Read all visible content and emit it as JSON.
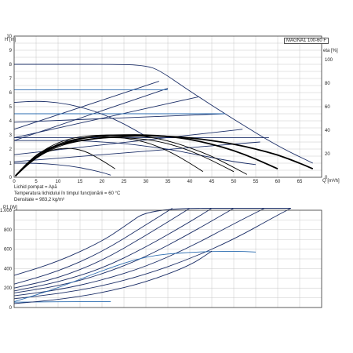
{
  "model_label": "MAGNA1 100-60 F",
  "fluid": {
    "line1": "Lichid pompat = Apă",
    "line2": "Temperatura lichidului în timpul funcţionării = 60 °C",
    "line3": "Densitate = 983,2 kg/m³"
  },
  "chart_data": [
    {
      "type": "line",
      "title": "",
      "ylabel": "H [m]",
      "y2label": "eta [%]",
      "xlabel": "Q [m³/h]",
      "xlim": [
        0,
        70
      ],
      "ylim": [
        0,
        10
      ],
      "y2lim": [
        0,
        120
      ],
      "x_ticks": [
        0,
        5,
        10,
        15,
        20,
        25,
        30,
        35,
        40,
        45,
        50,
        55,
        60,
        65
      ],
      "y_ticks": [
        0,
        1,
        2,
        3,
        4,
        5,
        6,
        7,
        8,
        9,
        10
      ],
      "y2_ticks": [
        0,
        20,
        40,
        60,
        80,
        100
      ],
      "grid": true,
      "series": [
        {
          "style": "curve",
          "x": [
            0,
            25,
            30,
            33,
            40,
            50,
            60,
            68
          ],
          "y": [
            8,
            8,
            7.9,
            7.6,
            6.1,
            4.1,
            2.2,
            1.0
          ]
        },
        {
          "style": "curve",
          "x": [
            0,
            33
          ],
          "y": [
            3.4,
            6.8
          ]
        },
        {
          "style": "curve",
          "x": [
            0,
            35
          ],
          "y": [
            2.6,
            6.3
          ]
        },
        {
          "style": "curve",
          "x": [
            0,
            42
          ],
          "y": [
            2.8,
            5.7
          ]
        },
        {
          "style": "curve",
          "x": [
            0,
            48
          ],
          "y": [
            3.9,
            4.5
          ]
        },
        {
          "style": "curve",
          "x": [
            0,
            52
          ],
          "y": [
            1.6,
            3.4
          ]
        },
        {
          "style": "curve",
          "x": [
            0,
            58
          ],
          "y": [
            2.8,
            2.8
          ]
        },
        {
          "style": "curve",
          "x": [
            0,
            56
          ],
          "y": [
            1.1,
            2.5
          ]
        },
        {
          "style": "curve-blue",
          "x": [
            0,
            48
          ],
          "y": [
            4.5,
            4.5
          ]
        },
        {
          "style": "curve-blue",
          "x": [
            0,
            35
          ],
          "y": [
            6.2,
            6.2
          ]
        },
        {
          "style": "curve",
          "x": [
            0,
            5,
            10,
            15,
            20,
            25,
            30
          ],
          "y": [
            5.3,
            5.4,
            5.3,
            5.0,
            4.5,
            3.8,
            2.9
          ]
        },
        {
          "style": "curve",
          "x": [
            0,
            5,
            10,
            15,
            20,
            22
          ],
          "y": [
            1.0,
            1.0,
            0.9,
            0.7,
            0.35,
            0.15
          ]
        },
        {
          "style": "curve",
          "x": [
            0,
            5,
            10,
            15,
            20,
            25,
            30,
            35,
            40,
            45,
            50,
            55
          ],
          "y": [
            2.6,
            2.6,
            2.6,
            2.6,
            2.5,
            2.4,
            2.2,
            2.0,
            1.7,
            1.4,
            1.1,
            0.9
          ]
        },
        {
          "style": "curve-bold",
          "x": [
            0.3,
            3,
            6,
            10,
            15,
            20,
            25,
            30,
            35,
            40,
            45,
            50,
            55,
            60,
            65,
            68
          ],
          "y": [
            0.1,
            1.0,
            1.8,
            2.3,
            2.6,
            2.8,
            2.9,
            2.95,
            2.9,
            2.8,
            2.6,
            2.35,
            2.0,
            1.6,
            1.0,
            0.6
          ]
        },
        {
          "style": "curve-bold",
          "x": [
            0.3,
            4,
            8,
            12,
            16,
            20,
            25,
            30,
            35,
            40,
            45,
            50,
            55,
            60
          ],
          "y": [
            0.1,
            1.2,
            2.0,
            2.5,
            2.8,
            2.95,
            3.0,
            3.0,
            2.9,
            2.7,
            2.35,
            1.9,
            1.3,
            0.6
          ]
        },
        {
          "style": "curve-black",
          "x": [
            0.3,
            5,
            10,
            15,
            20,
            25,
            30,
            35,
            40,
            45,
            50,
            53
          ],
          "y": [
            0.1,
            1.6,
            2.5,
            2.9,
            3.0,
            3.0,
            2.9,
            2.6,
            2.1,
            1.5,
            0.7,
            0.2
          ]
        },
        {
          "style": "curve-black",
          "x": [
            0.3,
            5,
            10,
            15,
            20,
            25,
            30,
            35,
            40,
            43
          ],
          "y": [
            0.1,
            1.5,
            2.4,
            2.8,
            2.9,
            2.8,
            2.5,
            1.9,
            1.0,
            0.4
          ]
        },
        {
          "style": "curve-black",
          "x": [
            0.3,
            4,
            8,
            12,
            16,
            20,
            23
          ],
          "y": [
            0.05,
            1.3,
            1.9,
            2.1,
            1.9,
            1.2,
            0.6
          ]
        },
        {
          "style": "curve-black",
          "x": [
            0.3,
            5,
            10,
            15,
            20,
            25,
            30,
            35,
            40,
            45,
            50
          ],
          "y": [
            0.1,
            1.4,
            2.2,
            2.6,
            2.8,
            2.8,
            2.7,
            2.4,
            1.9,
            1.2,
            0.4
          ]
        }
      ]
    },
    {
      "type": "line",
      "title": "",
      "ylabel": "P1 [W]",
      "xlim": [
        0,
        70
      ],
      "ylim": [
        0,
        1000
      ],
      "y_ticks": [
        0,
        200,
        400,
        600,
        800,
        1000
      ],
      "y_tick_labels": [
        "0",
        "200",
        "400",
        "600",
        "800",
        "1.000"
      ],
      "grid": true,
      "series": [
        {
          "style": "curve",
          "x": [
            0,
            10,
            20,
            25,
            31,
            55,
            63
          ],
          "y": [
            330,
            470,
            680,
            830,
            1020,
            1020,
            1020
          ]
        },
        {
          "style": "curve",
          "x": [
            0,
            10,
            20,
            30,
            36
          ],
          "y": [
            240,
            370,
            570,
            850,
            1020
          ]
        },
        {
          "style": "curve",
          "x": [
            0,
            10,
            20,
            30,
            40
          ],
          "y": [
            200,
            300,
            480,
            740,
            1020
          ]
        },
        {
          "style": "curve",
          "x": [
            0,
            10,
            20,
            30,
            40,
            45
          ],
          "y": [
            170,
            260,
            400,
            620,
            880,
            1020
          ]
        },
        {
          "style": "curve",
          "x": [
            0,
            10,
            20,
            30,
            40,
            50
          ],
          "y": [
            150,
            220,
            340,
            520,
            760,
            1020
          ]
        },
        {
          "style": "curve",
          "x": [
            0,
            10,
            20,
            30,
            40,
            50,
            57
          ],
          "y": [
            120,
            180,
            280,
            420,
            620,
            860,
            1020
          ]
        },
        {
          "style": "curve",
          "x": [
            0,
            10,
            20,
            30,
            40,
            50,
            60,
            63
          ],
          "y": [
            90,
            140,
            220,
            340,
            500,
            700,
            950,
            1020
          ]
        },
        {
          "style": "curve-blue",
          "x": [
            0,
            10,
            20,
            30,
            40,
            50,
            55
          ],
          "y": [
            60,
            200,
            380,
            530,
            570,
            580,
            570
          ]
        },
        {
          "style": "curve-blue",
          "x": [
            0,
            10,
            20,
            22
          ],
          "y": [
            55,
            60,
            60,
            60
          ]
        },
        {
          "style": "curve",
          "x": [
            0,
            10,
            20,
            30,
            40,
            45
          ],
          "y": [
            40,
            80,
            150,
            260,
            430,
            580
          ]
        }
      ]
    }
  ]
}
